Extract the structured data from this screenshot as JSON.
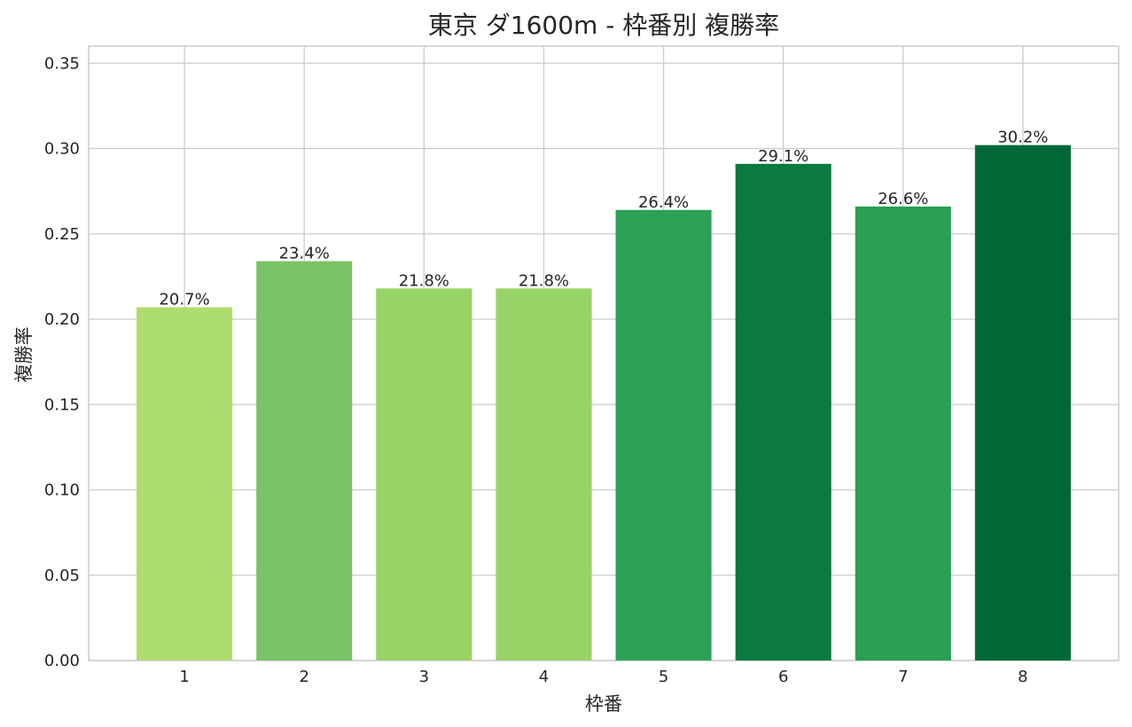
{
  "chart_data": {
    "type": "bar",
    "title": "東京 ダ1600m - 枠番別 複勝率",
    "xlabel": "枠番",
    "ylabel": "複勝率",
    "categories": [
      "1",
      "2",
      "3",
      "4",
      "5",
      "6",
      "7",
      "8"
    ],
    "values": [
      0.207,
      0.234,
      0.218,
      0.218,
      0.264,
      0.291,
      0.266,
      0.302
    ],
    "data_labels": [
      "20.7%",
      "23.4%",
      "21.8%",
      "21.8%",
      "26.4%",
      "29.1%",
      "26.6%",
      "30.2%"
    ],
    "bar_colors": [
      "#addc6f",
      "#78c466",
      "#98d368",
      "#98d368",
      "#2ca155",
      "#0a7a3f",
      "#29a054",
      "#006837"
    ],
    "ylim": [
      0,
      0.36
    ],
    "yticks": [
      "0.00",
      "0.05",
      "0.10",
      "0.15",
      "0.20",
      "0.25",
      "0.30",
      "0.35"
    ],
    "grid": true,
    "legend": "none"
  }
}
